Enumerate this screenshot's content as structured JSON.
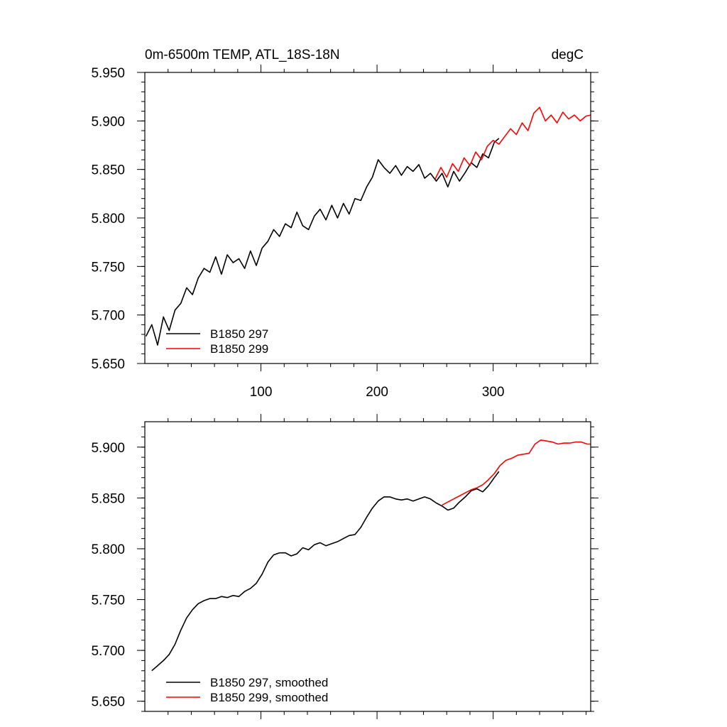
{
  "chart_data": [
    {
      "type": "line",
      "title": "0m-6500m TEMP, ATL_18S-18N",
      "units": "degC",
      "xlim": [
        0,
        384
      ],
      "ylim": [
        5.65,
        5.95
      ],
      "yticks": [
        "5.650",
        "5.700",
        "5.750",
        "5.800",
        "5.850",
        "5.900",
        "5.950"
      ],
      "xticks": [
        "100",
        "200",
        "300"
      ],
      "legend_position": "bottom-left",
      "series": [
        {
          "name": "B1850 297",
          "color": "#000000",
          "x": [
            1,
            6,
            11,
            16,
            21,
            26,
            31,
            36,
            41,
            46,
            51,
            56,
            61,
            66,
            71,
            76,
            81,
            86,
            91,
            96,
            101,
            106,
            111,
            116,
            121,
            126,
            131,
            136,
            141,
            146,
            151,
            156,
            161,
            166,
            171,
            176,
            181,
            186,
            191,
            196,
            201,
            206,
            211,
            216,
            221,
            226,
            231,
            236,
            241,
            246,
            251,
            256,
            261,
            266,
            271,
            276,
            281,
            286,
            291,
            296,
            301,
            305
          ],
          "y": [
            5.678,
            5.69,
            5.669,
            5.698,
            5.684,
            5.705,
            5.712,
            5.728,
            5.721,
            5.738,
            5.748,
            5.744,
            5.76,
            5.742,
            5.762,
            5.754,
            5.758,
            5.748,
            5.766,
            5.751,
            5.769,
            5.776,
            5.788,
            5.781,
            5.794,
            5.79,
            5.806,
            5.792,
            5.788,
            5.802,
            5.809,
            5.798,
            5.813,
            5.8,
            5.815,
            5.804,
            5.82,
            5.818,
            5.832,
            5.842,
            5.86,
            5.852,
            5.846,
            5.854,
            5.844,
            5.853,
            5.848,
            5.855,
            5.841,
            5.846,
            5.838,
            5.846,
            5.832,
            5.848,
            5.838,
            5.847,
            5.857,
            5.852,
            5.866,
            5.862,
            5.878,
            5.882
          ]
        },
        {
          "name": "B1850 299",
          "color": "#ff0000",
          "x": [
            250,
            255,
            260,
            265,
            270,
            275,
            280,
            285,
            290,
            295,
            300,
            305,
            310,
            315,
            320,
            325,
            330,
            335,
            340,
            345,
            350,
            355,
            360,
            365,
            370,
            375,
            380,
            384
          ],
          "y": [
            5.84,
            5.852,
            5.842,
            5.856,
            5.848,
            5.862,
            5.854,
            5.868,
            5.86,
            5.874,
            5.88,
            5.876,
            5.884,
            5.892,
            5.886,
            5.898,
            5.89,
            5.908,
            5.914,
            5.9,
            5.906,
            5.898,
            5.909,
            5.902,
            5.906,
            5.9,
            5.905,
            5.906
          ]
        }
      ]
    },
    {
      "type": "line",
      "xlim": [
        0,
        384
      ],
      "ylim": [
        5.64,
        5.925
      ],
      "yticks": [
        "5.650",
        "5.700",
        "5.750",
        "5.800",
        "5.850",
        "5.900"
      ],
      "legend_position": "bottom-left",
      "series": [
        {
          "name": "B1850 297, smoothed",
          "color": "#000000",
          "x": [
            6,
            11,
            16,
            21,
            26,
            31,
            36,
            41,
            46,
            51,
            56,
            61,
            66,
            71,
            76,
            81,
            86,
            91,
            96,
            101,
            106,
            111,
            116,
            121,
            126,
            131,
            136,
            141,
            146,
            151,
            156,
            161,
            166,
            171,
            176,
            181,
            186,
            191,
            196,
            201,
            206,
            211,
            216,
            221,
            226,
            231,
            236,
            241,
            246,
            251,
            256,
            261,
            266,
            271,
            276,
            281,
            286,
            291,
            296,
            301,
            305
          ],
          "y": [
            5.68,
            5.685,
            5.69,
            5.696,
            5.706,
            5.72,
            5.732,
            5.74,
            5.746,
            5.749,
            5.751,
            5.751,
            5.753,
            5.752,
            5.754,
            5.753,
            5.758,
            5.761,
            5.766,
            5.775,
            5.787,
            5.794,
            5.796,
            5.796,
            5.793,
            5.795,
            5.801,
            5.799,
            5.804,
            5.806,
            5.803,
            5.805,
            5.807,
            5.81,
            5.813,
            5.814,
            5.821,
            5.831,
            5.84,
            5.847,
            5.851,
            5.851,
            5.849,
            5.848,
            5.849,
            5.847,
            5.849,
            5.851,
            5.849,
            5.845,
            5.842,
            5.838,
            5.84,
            5.846,
            5.851,
            5.857,
            5.859,
            5.856,
            5.862,
            5.87,
            5.876
          ]
        },
        {
          "name": "B1850 299, smoothed",
          "color": "#ff0000",
          "x": [
            256,
            261,
            266,
            271,
            276,
            281,
            286,
            291,
            296,
            301,
            306,
            311,
            316,
            321,
            326,
            331,
            336,
            341,
            346,
            351,
            356,
            361,
            366,
            371,
            376,
            381,
            384
          ],
          "y": [
            5.843,
            5.846,
            5.849,
            5.852,
            5.855,
            5.858,
            5.86,
            5.863,
            5.868,
            5.874,
            5.882,
            5.887,
            5.889,
            5.892,
            5.893,
            5.894,
            5.903,
            5.907,
            5.906,
            5.905,
            5.903,
            5.904,
            5.904,
            5.905,
            5.905,
            5.903,
            5.903
          ]
        }
      ]
    }
  ]
}
